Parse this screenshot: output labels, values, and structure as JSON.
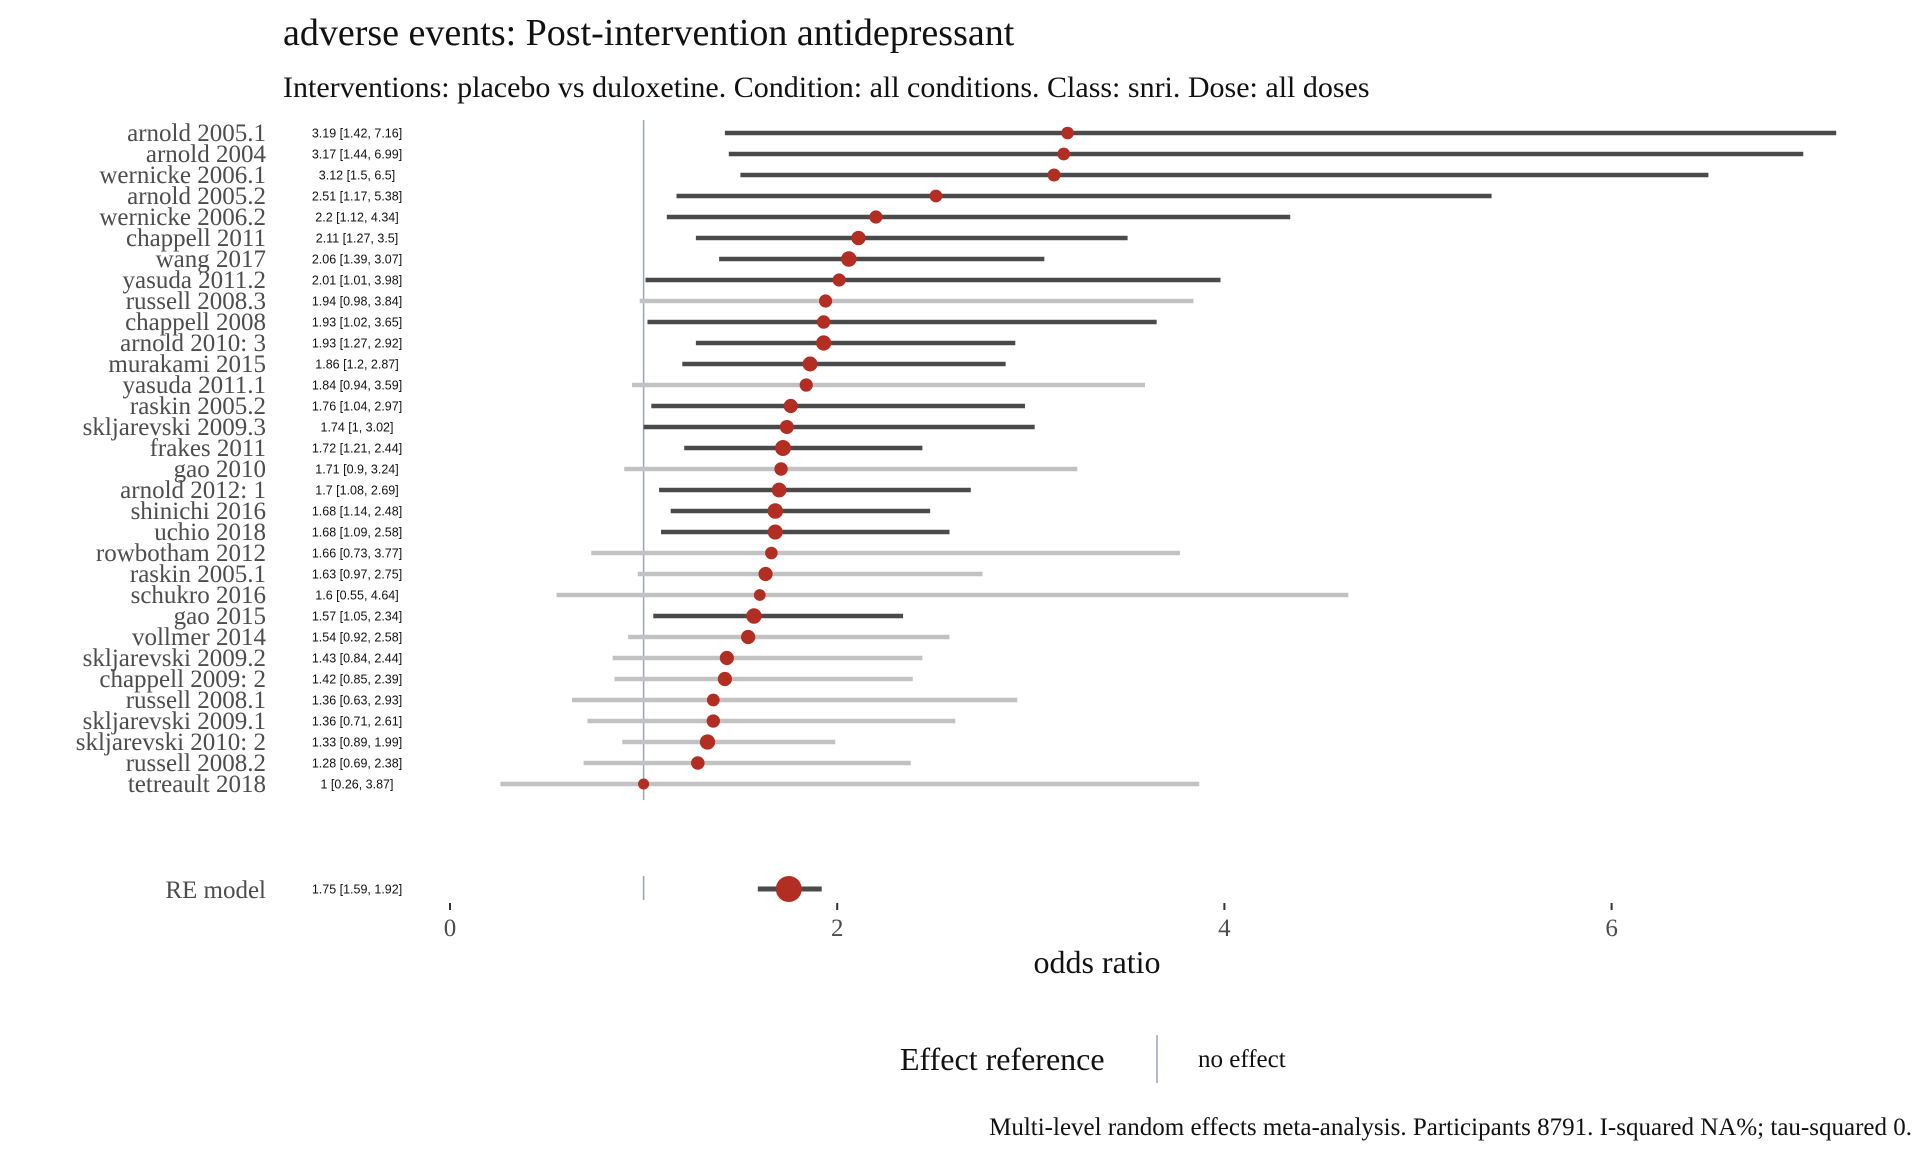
{
  "chart_data": {
    "type": "forest",
    "title": "adverse events: Post-intervention antidepressant",
    "subtitle": "Interventions: placebo vs duloxetine. Condition: all conditions. Class: snri. Dose: all doses",
    "xlabel": "odds ratio",
    "xlim": [
      -0.5,
      7.2
    ],
    "xticks": [
      0,
      2,
      4,
      6
    ],
    "reference_value": 1,
    "studies": [
      {
        "name": "arnold 2005.1",
        "or": 3.19,
        "lo": 1.42,
        "hi": 7.16,
        "ci_text": "3.19 [1.42, 7.16]",
        "significant": true
      },
      {
        "name": "arnold 2004",
        "or": 3.17,
        "lo": 1.44,
        "hi": 6.99,
        "ci_text": "3.17 [1.44, 6.99]",
        "significant": true
      },
      {
        "name": "wernicke 2006.1",
        "or": 3.12,
        "lo": 1.5,
        "hi": 6.5,
        "ci_text": "3.12 [1.5, 6.5]",
        "significant": true
      },
      {
        "name": "arnold 2005.2",
        "or": 2.51,
        "lo": 1.17,
        "hi": 5.38,
        "ci_text": "2.51 [1.17, 5.38]",
        "significant": true
      },
      {
        "name": "wernicke 2006.2",
        "or": 2.2,
        "lo": 1.12,
        "hi": 4.34,
        "ci_text": "2.2 [1.12, 4.34]",
        "significant": true
      },
      {
        "name": "chappell 2011",
        "or": 2.11,
        "lo": 1.27,
        "hi": 3.5,
        "ci_text": "2.11 [1.27, 3.5]",
        "significant": true
      },
      {
        "name": "wang 2017",
        "or": 2.06,
        "lo": 1.39,
        "hi": 3.07,
        "ci_text": "2.06 [1.39, 3.07]",
        "significant": true
      },
      {
        "name": "yasuda 2011.2",
        "or": 2.01,
        "lo": 1.01,
        "hi": 3.98,
        "ci_text": "2.01 [1.01, 3.98]",
        "significant": true
      },
      {
        "name": "russell 2008.3",
        "or": 1.94,
        "lo": 0.98,
        "hi": 3.84,
        "ci_text": "1.94 [0.98, 3.84]",
        "significant": false
      },
      {
        "name": "chappell 2008",
        "or": 1.93,
        "lo": 1.02,
        "hi": 3.65,
        "ci_text": "1.93 [1.02, 3.65]",
        "significant": true
      },
      {
        "name": "arnold 2010: 3",
        "or": 1.93,
        "lo": 1.27,
        "hi": 2.92,
        "ci_text": "1.93 [1.27, 2.92]",
        "significant": true
      },
      {
        "name": "murakami 2015",
        "or": 1.86,
        "lo": 1.2,
        "hi": 2.87,
        "ci_text": "1.86 [1.2, 2.87]",
        "significant": true
      },
      {
        "name": "yasuda 2011.1",
        "or": 1.84,
        "lo": 0.94,
        "hi": 3.59,
        "ci_text": "1.84 [0.94, 3.59]",
        "significant": false
      },
      {
        "name": "raskin 2005.2",
        "or": 1.76,
        "lo": 1.04,
        "hi": 2.97,
        "ci_text": "1.76 [1.04, 2.97]",
        "significant": true
      },
      {
        "name": "skljarevski 2009.3",
        "or": 1.74,
        "lo": 1,
        "hi": 3.02,
        "ci_text": "1.74 [1, 3.02]",
        "significant": true
      },
      {
        "name": "frakes 2011",
        "or": 1.72,
        "lo": 1.21,
        "hi": 2.44,
        "ci_text": "1.72 [1.21, 2.44]",
        "significant": true
      },
      {
        "name": "gao 2010",
        "or": 1.71,
        "lo": 0.9,
        "hi": 3.24,
        "ci_text": "1.71 [0.9, 3.24]",
        "significant": false
      },
      {
        "name": "arnold 2012: 1",
        "or": 1.7,
        "lo": 1.08,
        "hi": 2.69,
        "ci_text": "1.7 [1.08, 2.69]",
        "significant": true
      },
      {
        "name": "shinichi 2016",
        "or": 1.68,
        "lo": 1.14,
        "hi": 2.48,
        "ci_text": "1.68 [1.14, 2.48]",
        "significant": true
      },
      {
        "name": "uchio 2018",
        "or": 1.68,
        "lo": 1.09,
        "hi": 2.58,
        "ci_text": "1.68 [1.09, 2.58]",
        "significant": true
      },
      {
        "name": "rowbotham 2012",
        "or": 1.66,
        "lo": 0.73,
        "hi": 3.77,
        "ci_text": "1.66 [0.73, 3.77]",
        "significant": false
      },
      {
        "name": "raskin 2005.1",
        "or": 1.63,
        "lo": 0.97,
        "hi": 2.75,
        "ci_text": "1.63 [0.97, 2.75]",
        "significant": false
      },
      {
        "name": "schukro 2016",
        "or": 1.6,
        "lo": 0.55,
        "hi": 4.64,
        "ci_text": "1.6 [0.55, 4.64]",
        "significant": false
      },
      {
        "name": "gao 2015",
        "or": 1.57,
        "lo": 1.05,
        "hi": 2.34,
        "ci_text": "1.57 [1.05, 2.34]",
        "significant": true
      },
      {
        "name": "vollmer 2014",
        "or": 1.54,
        "lo": 0.92,
        "hi": 2.58,
        "ci_text": "1.54 [0.92, 2.58]",
        "significant": false
      },
      {
        "name": "skljarevski 2009.2",
        "or": 1.43,
        "lo": 0.84,
        "hi": 2.44,
        "ci_text": "1.43 [0.84, 2.44]",
        "significant": false
      },
      {
        "name": "chappell 2009: 2",
        "or": 1.42,
        "lo": 0.85,
        "hi": 2.39,
        "ci_text": "1.42 [0.85, 2.39]",
        "significant": false
      },
      {
        "name": "russell 2008.1",
        "or": 1.36,
        "lo": 0.63,
        "hi": 2.93,
        "ci_text": "1.36 [0.63, 2.93]",
        "significant": false
      },
      {
        "name": "skljarevski 2009.1",
        "or": 1.36,
        "lo": 0.71,
        "hi": 2.61,
        "ci_text": "1.36 [0.71, 2.61]",
        "significant": false
      },
      {
        "name": "skljarevski 2010: 2",
        "or": 1.33,
        "lo": 0.89,
        "hi": 1.99,
        "ci_text": "1.33 [0.89, 1.99]",
        "significant": false
      },
      {
        "name": "russell 2008.2",
        "or": 1.28,
        "lo": 0.69,
        "hi": 2.38,
        "ci_text": "1.28 [0.69, 2.38]",
        "significant": false
      },
      {
        "name": "tetreault 2018",
        "or": 1,
        "lo": 0.26,
        "hi": 3.87,
        "ci_text": "1 [0.26, 3.87]",
        "significant": false
      }
    ],
    "pooled": {
      "name": "RE model",
      "or": 1.75,
      "lo": 1.59,
      "hi": 1.92,
      "ci_text": "1.75 [1.59, 1.92]"
    },
    "legend": {
      "title": "Effect reference",
      "label": "no effect",
      "placement": "bottom"
    },
    "caption": "Multi-level random effects meta-analysis. Participants 8791. I-squared NA%; tau-squared 0.",
    "colors": {
      "point": "#b22e22",
      "ci_significant": "#4a4a4a",
      "ci_nonsignificant": "#c2c2c2",
      "reference_line": "#9aa3b8"
    }
  }
}
